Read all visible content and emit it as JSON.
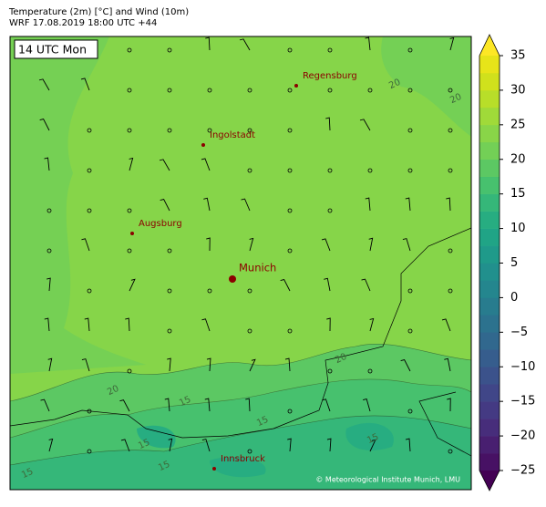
{
  "header": {
    "title": "Temperature (2m) [°C] and Wind (10m)",
    "subtitle": "WRF 17.08.2019 18:00 UTC +44"
  },
  "time_label": "14 UTC Mon",
  "cities": [
    {
      "name": "Regensburg"
    },
    {
      "name": "Ingolstadt"
    },
    {
      "name": "Augsburg"
    },
    {
      "name": "Munich"
    },
    {
      "name": "Innsbruck"
    }
  ],
  "contour_labels": [
    20,
    20,
    20,
    20,
    15,
    15,
    15,
    15,
    15,
    15
  ],
  "copyright": "© Meteorological Institute Munich, LMU",
  "colorbar": {
    "lim": [
      -25,
      35
    ],
    "ticks": [
      35,
      30,
      25,
      20,
      15,
      10,
      5,
      0,
      {
        "value": -5,
        "label": "−5"
      },
      {
        "value": -10,
        "label": "−10"
      },
      {
        "value": -15,
        "label": "−15"
      },
      {
        "value": -20,
        "label": "−20"
      },
      {
        "value": -25,
        "label": "−25"
      }
    ],
    "colors": [
      "#471164",
      "#481f70",
      "#472d7b",
      "#443a83",
      "#404688",
      "#3b528b",
      "#365d8d",
      "#31688e",
      "#2c728e",
      "#287c8e",
      "#24868e",
      "#21908d",
      "#1f9a8a",
      "#20a486",
      "#27ad81",
      "#35b779",
      "#47c16e",
      "#5cc863",
      "#73d056",
      "#89d548",
      "#a0da39",
      "#b8de29",
      "#d0e11c",
      "#e7e419"
    ],
    "under_color": "#440154",
    "over_color": "#fde725"
  }
}
